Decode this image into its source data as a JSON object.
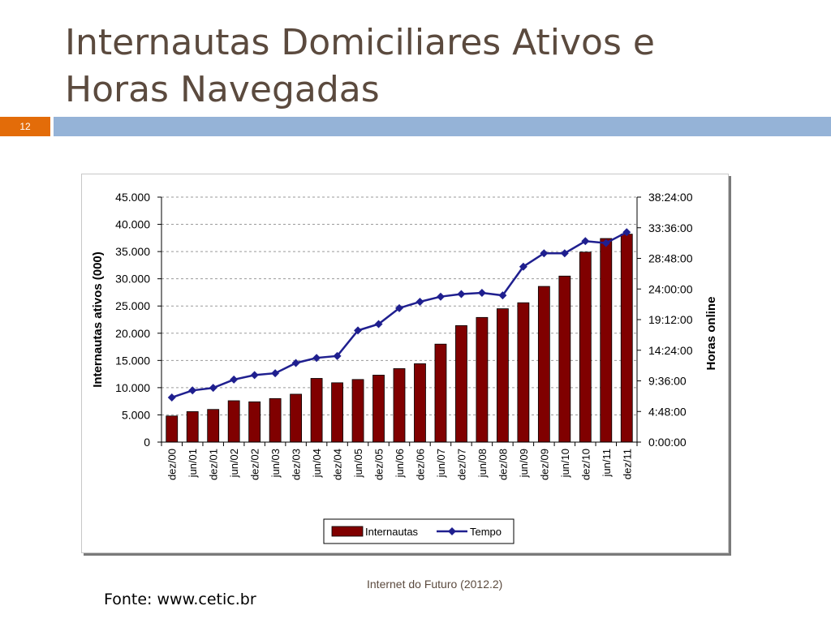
{
  "slide": {
    "title_line1": "Internautas Domiciliares Ativos e",
    "title_line2": "Horas Navegadas",
    "number": "12",
    "footer_center": "Internet do Futuro (2012.2)",
    "footer_source": "Fonte: www.cetic.br"
  },
  "chart_data": {
    "type": "bar",
    "categories": [
      "dez/00",
      "jun/01",
      "dez/01",
      "jun/02",
      "dez/02",
      "jun/03",
      "dez/03",
      "jun/04",
      "dez/04",
      "jun/05",
      "dez/05",
      "jun/06",
      "dez/06",
      "jun/07",
      "dez/07",
      "jun/08",
      "dez/08",
      "jun/09",
      "dez/09",
      "jun/10",
      "dez/10",
      "jun/11",
      "dez/11"
    ],
    "series": [
      {
        "name": "Internautas",
        "type": "bar",
        "axis": "left",
        "color": "#800000",
        "values": [
          4800,
          5600,
          6000,
          7600,
          7400,
          8000,
          8800,
          11700,
          10900,
          11500,
          12300,
          13500,
          14400,
          18000,
          21400,
          22900,
          24500,
          25600,
          28600,
          30500,
          34900,
          37400,
          38200
        ]
      },
      {
        "name": "Tempo",
        "type": "line",
        "axis": "right",
        "color": "#1f1f8f",
        "values_hours": [
          7.0,
          8.1,
          8.5,
          9.8,
          10.5,
          10.8,
          12.4,
          13.2,
          13.5,
          17.5,
          18.5,
          21.0,
          22.0,
          22.8,
          23.2,
          23.4,
          23.0,
          27.5,
          29.6,
          29.6,
          31.5,
          31.2,
          32.9
        ]
      }
    ],
    "ylabel_left": "Internautas ativos (000)",
    "ylabel_right": "Horas online",
    "ylim_left": [
      0,
      45000
    ],
    "yticks_left": [
      "0",
      "5.000",
      "10.000",
      "15.000",
      "20.000",
      "25.000",
      "30.000",
      "35.000",
      "40.000",
      "45.000"
    ],
    "ylim_right_hours": [
      0,
      38.4
    ],
    "yticks_right": [
      "0:00:00",
      "4:48:00",
      "9:36:00",
      "14:24:00",
      "19:12:00",
      "24:00:00",
      "28:48:00",
      "33:36:00",
      "38:24:00"
    ],
    "grid": true,
    "legend": "bottom-center"
  }
}
